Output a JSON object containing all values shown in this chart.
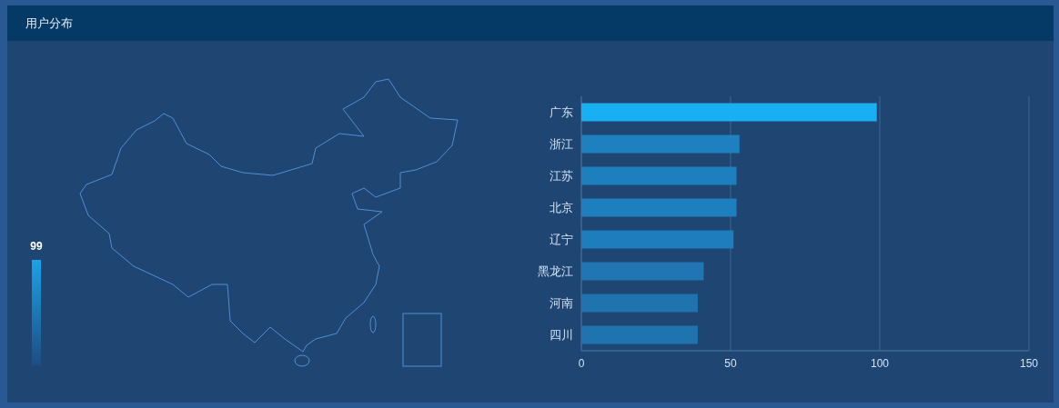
{
  "chart_data": [
    {
      "type": "other",
      "title": "用户分布",
      "annotations": [
        "99"
      ],
      "colors": [
        "#1aa3ea",
        "#1d4c7f"
      ]
    },
    {
      "type": "bar",
      "orientation": "horizontal",
      "categories": [
        "广东",
        "浙江",
        "江苏",
        "北京",
        "辽宁",
        "黑龙江",
        "河南",
        "四川"
      ],
      "values": [
        99,
        53,
        52,
        52,
        51,
        41,
        39,
        39
      ],
      "colors": [
        "#19b0f3",
        "#1e80bf",
        "#1e7fbe",
        "#1e7fbe",
        "#1e7ebd",
        "#1f76b3",
        "#1f74b0",
        "#1f74b0"
      ],
      "xlim": [
        0,
        150
      ],
      "xticks": [
        0,
        50,
        100,
        150
      ],
      "grid": "x"
    }
  ]
}
